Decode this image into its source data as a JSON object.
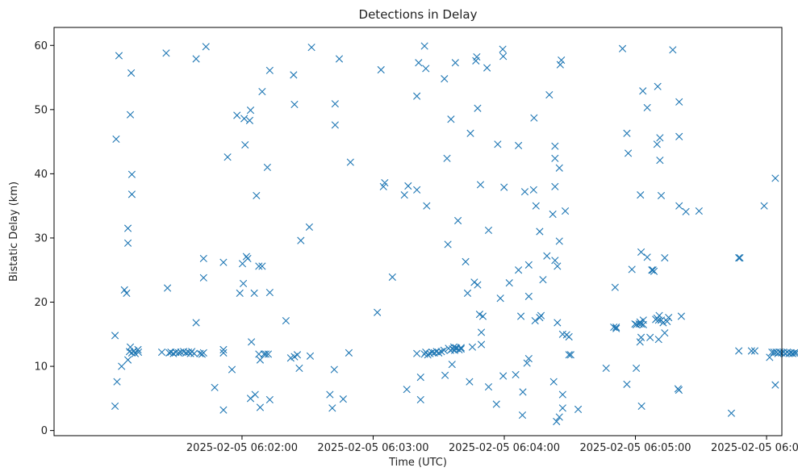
{
  "chart_data": {
    "type": "scatter",
    "title": "Detections in Delay",
    "xlabel": "Time (UTC)",
    "ylabel": "Bistatic Delay (km)",
    "x_axis_unit": "seconds after 2025-02-05 06:01:00",
    "xlim": [
      -26,
      307
    ],
    "ylim": [
      -0.8,
      62.8
    ],
    "grid": false,
    "legend": "none",
    "marker": "x",
    "color": "#1f77b4",
    "x_ticks": [
      {
        "value": 60,
        "label": "2025-02-05 06:02:00"
      },
      {
        "value": 120,
        "label": "2025-02-05 06:03:00"
      },
      {
        "value": 180,
        "label": "2025-02-05 06:04:00"
      },
      {
        "value": 240,
        "label": "2025-02-05 06:05:00"
      },
      {
        "value": 300,
        "label": "2025-02-05 06:06:00"
      }
    ],
    "y_ticks": [
      0,
      10,
      20,
      30,
      40,
      50,
      60
    ],
    "points": [
      [
        1.9,
        3.8
      ],
      [
        1.9,
        14.8
      ],
      [
        2.4,
        45.4
      ],
      [
        2.8,
        7.6
      ],
      [
        3.7,
        58.4
      ],
      [
        4.9,
        10.0
      ],
      [
        6.2,
        21.9
      ],
      [
        7.2,
        21.4
      ],
      [
        7.8,
        31.5
      ],
      [
        7.8,
        29.2
      ],
      [
        7.8,
        11.0
      ],
      [
        8.5,
        12.3
      ],
      [
        8.9,
        13.0
      ],
      [
        8.9,
        49.2
      ],
      [
        9.3,
        55.7
      ],
      [
        9.6,
        39.9
      ],
      [
        9.6,
        36.8
      ],
      [
        9.6,
        12.1
      ],
      [
        10.5,
        12.4
      ],
      [
        11.1,
        12.0
      ],
      [
        12.4,
        12.6
      ],
      [
        12.6,
        12.2
      ],
      [
        23.3,
        12.2
      ],
      [
        25.3,
        58.8
      ],
      [
        25.9,
        22.2
      ],
      [
        26.7,
        12.1
      ],
      [
        27.5,
        12.2
      ],
      [
        28.6,
        12.0
      ],
      [
        29.7,
        12.2
      ],
      [
        31.0,
        12.1
      ],
      [
        32.0,
        12.2
      ],
      [
        33.3,
        12.3
      ],
      [
        34.4,
        12.1
      ],
      [
        35.5,
        12.2
      ],
      [
        36.4,
        12.0
      ],
      [
        37.0,
        12.3
      ],
      [
        38.1,
        12.0
      ],
      [
        39.0,
        16.8
      ],
      [
        39.0,
        57.9
      ],
      [
        40.8,
        12.0
      ],
      [
        41.7,
        11.9
      ],
      [
        42.4,
        26.8
      ],
      [
        42.4,
        12.1
      ],
      [
        42.4,
        23.8
      ],
      [
        43.5,
        59.8
      ],
      [
        47.5,
        6.7
      ],
      [
        51.5,
        12.1
      ],
      [
        51.5,
        12.6
      ],
      [
        51.5,
        3.2
      ],
      [
        51.5,
        26.2
      ],
      [
        53.4,
        42.6
      ],
      [
        55.4,
        9.5
      ],
      [
        57.7,
        49.1
      ],
      [
        59.0,
        21.4
      ],
      [
        60.2,
        26.0
      ],
      [
        60.6,
        22.9
      ],
      [
        61.0,
        48.6
      ],
      [
        61.4,
        44.5
      ],
      [
        62.0,
        27.1
      ],
      [
        62.6,
        26.8
      ],
      [
        63.5,
        48.3
      ],
      [
        63.9,
        49.9
      ],
      [
        63.9,
        5.0
      ],
      [
        64.3,
        13.8
      ],
      [
        65.6,
        21.4
      ],
      [
        66.0,
        5.6
      ],
      [
        66.6,
        36.6
      ],
      [
        67.7,
        25.6
      ],
      [
        67.7,
        11.9
      ],
      [
        68.3,
        11.0
      ],
      [
        68.3,
        3.6
      ],
      [
        69.2,
        25.6
      ],
      [
        69.2,
        52.8
      ],
      [
        70.1,
        11.9
      ],
      [
        70.9,
        11.9
      ],
      [
        71.6,
        41.0
      ],
      [
        72.0,
        11.9
      ],
      [
        72.7,
        56.1
      ],
      [
        72.7,
        21.5
      ],
      [
        72.7,
        4.8
      ],
      [
        80.1,
        17.1
      ],
      [
        82.3,
        11.3
      ],
      [
        83.6,
        55.4
      ],
      [
        84.0,
        11.5
      ],
      [
        84.0,
        50.8
      ],
      [
        85.3,
        11.8
      ],
      [
        86.2,
        9.7
      ],
      [
        86.9,
        29.6
      ],
      [
        90.8,
        31.7
      ],
      [
        91.2,
        11.6
      ],
      [
        91.8,
        59.7
      ],
      [
        100.2,
        5.6
      ],
      [
        101.3,
        3.5
      ],
      [
        102.2,
        9.5
      ],
      [
        102.6,
        50.9
      ],
      [
        102.6,
        47.6
      ],
      [
        104.5,
        57.9
      ],
      [
        106.3,
        4.9
      ],
      [
        108.9,
        12.1
      ],
      [
        109.6,
        41.8
      ],
      [
        121.9,
        18.4
      ],
      [
        123.6,
        56.2
      ],
      [
        124.7,
        38.0
      ],
      [
        125.3,
        38.6
      ],
      [
        128.8,
        23.9
      ],
      [
        134.3,
        36.7
      ],
      [
        135.4,
        6.4
      ],
      [
        136.0,
        38.1
      ],
      [
        140.0,
        37.5
      ],
      [
        140.0,
        12.0
      ],
      [
        140.0,
        52.1
      ],
      [
        140.8,
        57.3
      ],
      [
        141.7,
        4.8
      ],
      [
        141.7,
        8.3
      ],
      [
        143.5,
        11.9
      ],
      [
        143.5,
        59.9
      ],
      [
        144.1,
        12.2
      ],
      [
        144.1,
        56.4
      ],
      [
        144.5,
        35.0
      ],
      [
        145.0,
        11.8
      ],
      [
        146.0,
        12.0
      ],
      [
        147.0,
        12.2
      ],
      [
        148.0,
        12.1
      ],
      [
        149.0,
        12.3
      ],
      [
        150.0,
        12.1
      ],
      [
        151.2,
        12.3
      ],
      [
        152.4,
        12.5
      ],
      [
        152.6,
        54.8
      ],
      [
        152.9,
        8.6
      ],
      [
        153.8,
        42.4
      ],
      [
        154.2,
        29.0
      ],
      [
        154.5,
        12.8
      ],
      [
        155.4,
        12.5
      ],
      [
        155.6,
        48.5
      ],
      [
        156.1,
        10.3
      ],
      [
        156.3,
        12.7
      ],
      [
        156.9,
        13.0
      ],
      [
        157.3,
        12.5
      ],
      [
        157.6,
        57.3
      ],
      [
        157.8,
        12.9
      ],
      [
        158.2,
        12.8
      ],
      [
        158.8,
        32.7
      ],
      [
        159.3,
        12.6
      ],
      [
        160.2,
        12.9
      ],
      [
        160.2,
        12.7
      ],
      [
        162.3,
        26.3
      ],
      [
        163.2,
        21.4
      ],
      [
        164.1,
        7.6
      ],
      [
        164.5,
        46.3
      ],
      [
        165.4,
        13.0
      ],
      [
        166.3,
        23.1
      ],
      [
        167.0,
        57.6
      ],
      [
        167.4,
        58.2
      ],
      [
        167.8,
        50.2
      ],
      [
        167.8,
        22.7
      ],
      [
        168.7,
        18.1
      ],
      [
        169.1,
        38.3
      ],
      [
        169.5,
        15.3
      ],
      [
        169.5,
        13.4
      ],
      [
        170.2,
        17.8
      ],
      [
        172.1,
        56.5
      ],
      [
        172.8,
        31.2
      ],
      [
        172.8,
        6.8
      ],
      [
        176.4,
        4.1
      ],
      [
        177.0,
        44.6
      ],
      [
        178.2,
        20.6
      ],
      [
        179.3,
        59.4
      ],
      [
        179.5,
        58.3
      ],
      [
        179.5,
        8.5
      ],
      [
        179.9,
        37.9
      ],
      [
        182.3,
        23.0
      ],
      [
        185.2,
        8.7
      ],
      [
        186.5,
        44.4
      ],
      [
        186.5,
        25.0
      ],
      [
        187.6,
        17.8
      ],
      [
        188.3,
        2.4
      ],
      [
        188.5,
        6.0
      ],
      [
        189.4,
        37.2
      ],
      [
        190.4,
        10.5
      ],
      [
        191.2,
        11.2
      ],
      [
        191.2,
        25.8
      ],
      [
        191.2,
        20.9
      ],
      [
        193.4,
        37.5
      ],
      [
        193.6,
        48.7
      ],
      [
        194.1,
        17.1
      ],
      [
        194.5,
        35.0
      ],
      [
        196.2,
        17.6
      ],
      [
        196.2,
        31.0
      ],
      [
        196.8,
        17.9
      ],
      [
        197.7,
        23.5
      ],
      [
        199.5,
        27.2
      ],
      [
        200.6,
        52.3
      ],
      [
        202.2,
        33.7
      ],
      [
        202.6,
        7.6
      ],
      [
        203.2,
        38.0
      ],
      [
        203.2,
        44.3
      ],
      [
        203.2,
        42.4
      ],
      [
        203.2,
        26.5
      ],
      [
        203.9,
        1.4
      ],
      [
        204.3,
        25.6
      ],
      [
        204.3,
        16.8
      ],
      [
        205.2,
        40.9
      ],
      [
        205.2,
        2.1
      ],
      [
        205.2,
        29.5
      ],
      [
        205.6,
        57.0
      ],
      [
        206.1,
        57.7
      ],
      [
        206.7,
        15.0
      ],
      [
        206.7,
        3.5
      ],
      [
        206.7,
        5.6
      ],
      [
        207.9,
        34.2
      ],
      [
        208.5,
        14.9
      ],
      [
        209.6,
        14.6
      ],
      [
        209.6,
        11.8
      ],
      [
        210.4,
        11.8
      ],
      [
        213.8,
        3.3
      ],
      [
        226.6,
        9.7
      ],
      [
        230.1,
        16.1
      ],
      [
        230.7,
        22.3
      ],
      [
        231.2,
        15.9
      ],
      [
        231.2,
        16.1
      ],
      [
        234.1,
        59.5
      ],
      [
        236.1,
        46.3
      ],
      [
        236.1,
        7.2
      ],
      [
        236.7,
        43.2
      ],
      [
        238.4,
        25.1
      ],
      [
        239.8,
        16.6
      ],
      [
        240.4,
        16.5
      ],
      [
        240.4,
        9.7
      ],
      [
        241.7,
        16.6
      ],
      [
        242.1,
        16.9
      ],
      [
        242.1,
        13.8
      ],
      [
        242.3,
        36.7
      ],
      [
        242.6,
        16.6
      ],
      [
        242.6,
        14.5
      ],
      [
        242.6,
        27.8
      ],
      [
        242.8,
        3.8
      ],
      [
        243.4,
        52.9
      ],
      [
        243.6,
        17.2
      ],
      [
        243.6,
        16.5
      ],
      [
        245.4,
        50.3
      ],
      [
        245.4,
        27.0
      ],
      [
        246.7,
        14.5
      ],
      [
        247.5,
        25.0
      ],
      [
        248.0,
        25.0
      ],
      [
        248.5,
        24.8
      ],
      [
        249.3,
        17.3
      ],
      [
        249.9,
        44.6
      ],
      [
        249.9,
        17.5
      ],
      [
        250.2,
        53.6
      ],
      [
        250.6,
        14.2
      ],
      [
        250.6,
        17.2
      ],
      [
        250.9,
        17.9
      ],
      [
        251.2,
        45.6
      ],
      [
        251.2,
        42.1
      ],
      [
        251.8,
        17.2
      ],
      [
        251.8,
        36.6
      ],
      [
        252.7,
        16.8
      ],
      [
        253.4,
        26.9
      ],
      [
        253.4,
        15.2
      ],
      [
        254.5,
        17.0
      ],
      [
        255.2,
        17.6
      ],
      [
        257.1,
        59.3
      ],
      [
        259.5,
        6.5
      ],
      [
        259.9,
        6.3
      ],
      [
        260.0,
        35.0
      ],
      [
        260.0,
        45.8
      ],
      [
        260.0,
        51.2
      ],
      [
        261.0,
        17.8
      ],
      [
        263.1,
        34.1
      ],
      [
        269.1,
        34.2
      ],
      [
        283.9,
        2.7
      ],
      [
        287.3,
        12.4
      ],
      [
        287.3,
        26.9
      ],
      [
        287.8,
        26.9
      ],
      [
        293.1,
        12.4
      ],
      [
        294.6,
        12.4
      ],
      [
        298.9,
        35.0
      ],
      [
        301.4,
        11.4
      ],
      [
        302.5,
        12.2
      ],
      [
        303.4,
        12.2
      ],
      [
        304.0,
        7.1
      ],
      [
        304.0,
        39.3
      ],
      [
        304.4,
        12.2
      ],
      [
        305.2,
        12.0
      ],
      [
        306.0,
        12.2
      ],
      [
        306.8,
        12.1
      ],
      [
        307.8,
        12.2
      ],
      [
        308.6,
        12.0
      ],
      [
        309.5,
        12.2
      ],
      [
        310.3,
        12.0
      ],
      [
        311.2,
        12.1
      ],
      [
        312.0,
        12.0
      ],
      [
        312.8,
        12.1
      ],
      [
        313.6,
        12.1
      ]
    ]
  }
}
